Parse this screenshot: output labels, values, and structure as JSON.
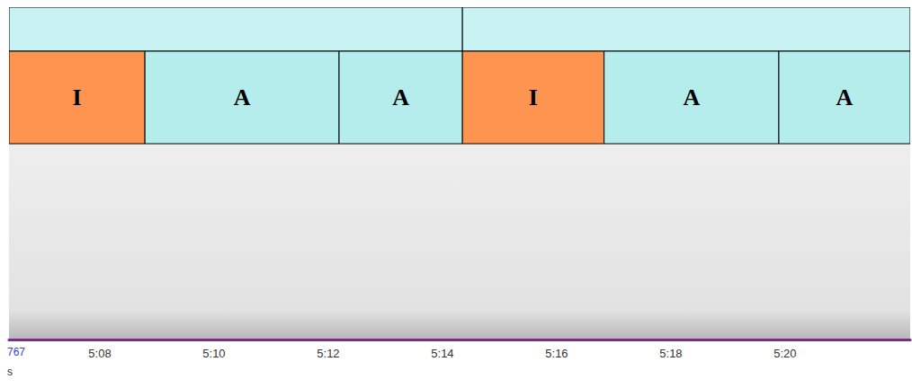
{
  "chart_data": {
    "type": "segments",
    "xlim": [
      306.41,
      322.19
    ],
    "xticks": [
      {
        "value": 308,
        "label": "5:08"
      },
      {
        "value": 310,
        "label": "5:10"
      },
      {
        "value": 312,
        "label": "5:12"
      },
      {
        "value": 314,
        "label": "5:14"
      },
      {
        "value": 316,
        "label": "5:16"
      },
      {
        "value": 318,
        "label": "5:18"
      },
      {
        "value": 320,
        "label": "5:20"
      }
    ],
    "groups": [
      {
        "start": 306.41,
        "end": 314.35,
        "color": "#c9f3f3"
      },
      {
        "start": 314.35,
        "end": 322.19,
        "color": "#c9f3f3"
      }
    ],
    "segments": [
      {
        "label": "I",
        "start": 306.41,
        "end": 308.79,
        "color": "#fd9450"
      },
      {
        "label": "A",
        "start": 308.79,
        "end": 312.19,
        "color": "#b5eded"
      },
      {
        "label": "A",
        "start": 312.19,
        "end": 314.35,
        "color": "#b5eded"
      },
      {
        "label": "I",
        "start": 314.35,
        "end": 316.83,
        "color": "#fd9450"
      },
      {
        "label": "A",
        "start": 316.83,
        "end": 319.89,
        "color": "#b5eded"
      },
      {
        "label": "A",
        "start": 319.89,
        "end": 322.19,
        "color": "#b5eded"
      }
    ],
    "axis_color": "#7b2d8e",
    "corner_label": "767",
    "unit_label": "s"
  }
}
